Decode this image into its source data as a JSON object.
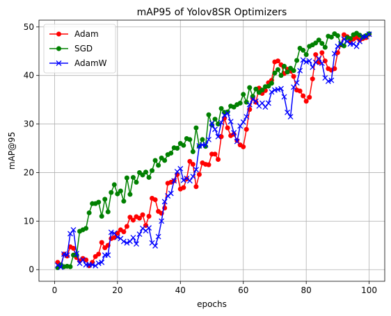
{
  "chart_data": {
    "type": "line",
    "title": "mAP95 of Yolov8SR Optimizers",
    "xlabel": "epochs",
    "ylabel": "mAP@95",
    "xlim": [
      -4.95,
      104.95
    ],
    "ylim": [
      -2.4,
      51.4
    ],
    "xticks": [
      0,
      20,
      40,
      60,
      80,
      100
    ],
    "yticks": [
      0,
      10,
      20,
      30,
      40,
      50
    ],
    "grid": true,
    "legend": "top-left",
    "x": [
      1,
      2,
      3,
      4,
      5,
      6,
      7,
      8,
      9,
      10,
      11,
      12,
      13,
      14,
      15,
      16,
      17,
      18,
      19,
      20,
      21,
      22,
      23,
      24,
      25,
      26,
      27,
      28,
      29,
      30,
      31,
      32,
      33,
      34,
      35,
      36,
      37,
      38,
      39,
      40,
      41,
      42,
      43,
      44,
      45,
      46,
      47,
      48,
      49,
      50,
      51,
      52,
      53,
      54,
      55,
      56,
      57,
      58,
      59,
      60,
      61,
      62,
      63,
      64,
      65,
      66,
      67,
      68,
      69,
      70,
      71,
      72,
      73,
      74,
      75,
      76,
      77,
      78,
      79,
      80,
      81,
      82,
      83,
      84,
      85,
      86,
      87,
      88,
      89,
      90,
      91,
      92,
      93,
      94,
      95,
      96,
      97,
      98,
      99,
      100
    ],
    "series": [
      {
        "name": "Adam",
        "color": "#ff0000",
        "marker": "circle",
        "values": [
          1.5,
          0.8,
          3.2,
          2.8,
          4.7,
          4.4,
          2.5,
          1.8,
          2.3,
          2.0,
          0.8,
          1.5,
          2.7,
          3.2,
          5.6,
          4.5,
          5.0,
          6.4,
          6.6,
          7.5,
          8.2,
          7.8,
          8.9,
          10.8,
          10.2,
          10.9,
          10.6,
          11.3,
          9.1,
          11.0,
          14.7,
          14.4,
          12.0,
          11.6,
          12.7,
          17.8,
          18.0,
          18.3,
          19.6,
          16.6,
          16.9,
          18.7,
          22.3,
          21.7,
          17.1,
          19.6,
          22.0,
          21.7,
          21.6,
          23.8,
          23.8,
          22.7,
          27.4,
          31.2,
          29.2,
          27.6,
          27.9,
          26.6,
          25.7,
          25.3,
          28.9,
          33.0,
          35.3,
          34.5,
          37.4,
          36.3,
          36.9,
          38.5,
          39.0,
          42.8,
          43.0,
          42.2,
          40.4,
          41.3,
          40.9,
          39.8,
          37.0,
          36.8,
          35.8,
          34.7,
          35.5,
          39.3,
          44.3,
          42.7,
          44.7,
          43.0,
          41.4,
          41.1,
          41.4,
          44.7,
          46.3,
          48.4,
          48.0,
          47.0,
          47.5,
          47.8,
          47.3,
          47.6,
          47.8,
          48.5
        ]
      },
      {
        "name": "SGD",
        "color": "#008000",
        "marker": "circle",
        "values": [
          0.4,
          1.0,
          0.6,
          0.7,
          0.6,
          3.0,
          3.0,
          7.9,
          8.2,
          8.5,
          11.7,
          13.6,
          13.6,
          13.9,
          11.0,
          14.5,
          11.9,
          15.9,
          17.5,
          15.6,
          16.2,
          14.1,
          18.9,
          15.5,
          19.0,
          18.0,
          20.0,
          19.5,
          20.1,
          19.0,
          20.4,
          22.5,
          21.5,
          23.0,
          22.5,
          23.7,
          24.0,
          25.1,
          25.0,
          26.0,
          25.6,
          27.0,
          26.8,
          24.3,
          29.2,
          25.4,
          26.8,
          25.4,
          31.9,
          29.8,
          31.0,
          30.0,
          33.2,
          32.4,
          32.5,
          33.7,
          33.5,
          34.0,
          34.3,
          36.1,
          34.5,
          37.5,
          35.7,
          37.2,
          36.5,
          37.0,
          37.7,
          37.8,
          38.4,
          40.5,
          41.2,
          40.0,
          41.9,
          40.7,
          41.5,
          41.0,
          43.1,
          45.6,
          45.2,
          44.3,
          46.0,
          46.3,
          46.7,
          47.3,
          46.6,
          45.8,
          48.1,
          47.9,
          48.6,
          48.2,
          46.4,
          46.1,
          47.8,
          47.6,
          48.4,
          48.7,
          48.3,
          47.9,
          48.2,
          48.6
        ]
      },
      {
        "name": "AdamW",
        "color": "#0000ff",
        "marker": "x",
        "values": [
          0.9,
          0.5,
          3.2,
          3.0,
          7.4,
          8.2,
          3.3,
          1.3,
          2.0,
          1.0,
          1.0,
          1.0,
          0.8,
          1.3,
          1.5,
          3.0,
          3.0,
          7.7,
          7.5,
          6.7,
          6.4,
          5.8,
          5.5,
          5.8,
          6.6,
          5.3,
          7.3,
          8.5,
          8.0,
          8.6,
          5.5,
          4.9,
          6.8,
          10.0,
          14.0,
          15.2,
          15.7,
          18.3,
          20.2,
          20.8,
          18.4,
          18.8,
          18.3,
          19.2,
          20.6,
          25.5,
          25.7,
          25.7,
          26.8,
          30.2,
          28.9,
          27.4,
          30.3,
          31.8,
          32.2,
          30.5,
          28.2,
          26.4,
          29.6,
          30.4,
          31.5,
          34.0,
          35.1,
          34.7,
          33.7,
          34.3,
          33.5,
          34.3,
          36.6,
          37.0,
          37.1,
          37.3,
          35.6,
          32.4,
          31.5,
          37.6,
          38.5,
          41.0,
          43.2,
          42.8,
          43.0,
          41.7,
          42.7,
          43.5,
          42.5,
          39.5,
          38.8,
          39.0,
          44.5,
          46.0,
          46.5,
          47.5,
          47.0,
          46.5,
          46.5,
          46.0,
          47.0,
          48.0,
          48.0,
          48.5
        ]
      }
    ]
  }
}
